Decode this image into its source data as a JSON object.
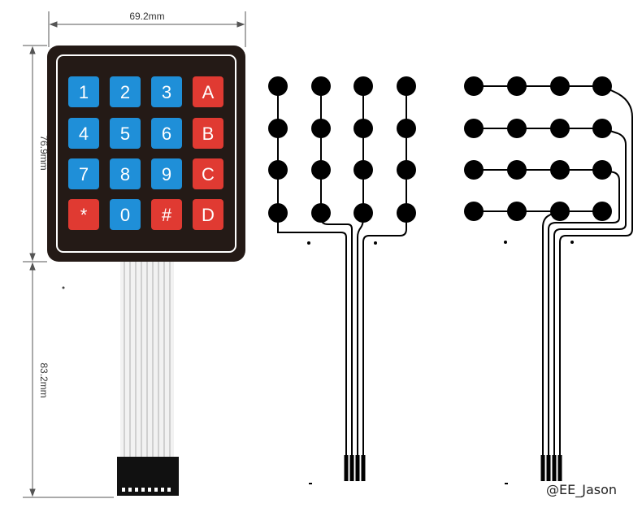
{
  "dimensions": {
    "width_label": "69.2mm",
    "keypad_height_label": "76.9mm",
    "cable_length_label": "83.2mm"
  },
  "keypad": {
    "rows": [
      [
        {
          "label": "1",
          "color": "blue"
        },
        {
          "label": "2",
          "color": "blue"
        },
        {
          "label": "3",
          "color": "blue"
        },
        {
          "label": "A",
          "color": "red"
        }
      ],
      [
        {
          "label": "4",
          "color": "blue"
        },
        {
          "label": "5",
          "color": "blue"
        },
        {
          "label": "6",
          "color": "blue"
        },
        {
          "label": "B",
          "color": "red"
        }
      ],
      [
        {
          "label": "7",
          "color": "blue"
        },
        {
          "label": "8",
          "color": "blue"
        },
        {
          "label": "9",
          "color": "blue"
        },
        {
          "label": "C",
          "color": "red"
        }
      ],
      [
        {
          "label": "*",
          "color": "red"
        },
        {
          "label": "0",
          "color": "blue"
        },
        {
          "label": "#",
          "color": "red"
        },
        {
          "label": "D",
          "color": "red"
        }
      ]
    ]
  },
  "colors": {
    "key_blue": "#1f8fd8",
    "key_red": "#e03a32",
    "keypad_body": "#241a16",
    "keypad_border": "#ffffff",
    "connector": "#111111",
    "trace": "#000000"
  },
  "watermark": "@EE_Jason"
}
